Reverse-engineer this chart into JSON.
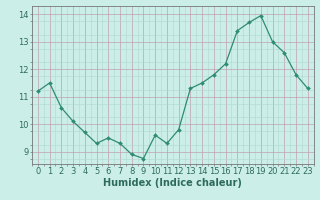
{
  "x": [
    0,
    1,
    2,
    3,
    4,
    5,
    6,
    7,
    8,
    9,
    10,
    11,
    12,
    13,
    14,
    15,
    16,
    17,
    18,
    19,
    20,
    21,
    22,
    23
  ],
  "y": [
    11.2,
    11.5,
    10.6,
    10.1,
    9.7,
    9.3,
    9.5,
    9.3,
    8.9,
    8.75,
    9.6,
    9.3,
    9.8,
    11.3,
    11.5,
    11.8,
    12.2,
    13.4,
    13.7,
    13.95,
    13.0,
    12.6,
    11.8,
    11.3
  ],
  "line_color": "#2e8b74",
  "marker": "D",
  "marker_size": 2.0,
  "linewidth": 0.9,
  "bg_color": "#cceee8",
  "grid_major_color": "#c0a0b0",
  "grid_minor_color": "#b0d8d0",
  "xlabel": "Humidex (Indice chaleur)",
  "xlabel_fontsize": 7,
  "ylabel_ticks": [
    9,
    10,
    11,
    12,
    13,
    14
  ],
  "xlim": [
    -0.5,
    23.5
  ],
  "ylim": [
    8.55,
    14.3
  ],
  "tick_fontsize": 6,
  "label_color": "#2e6b5e"
}
